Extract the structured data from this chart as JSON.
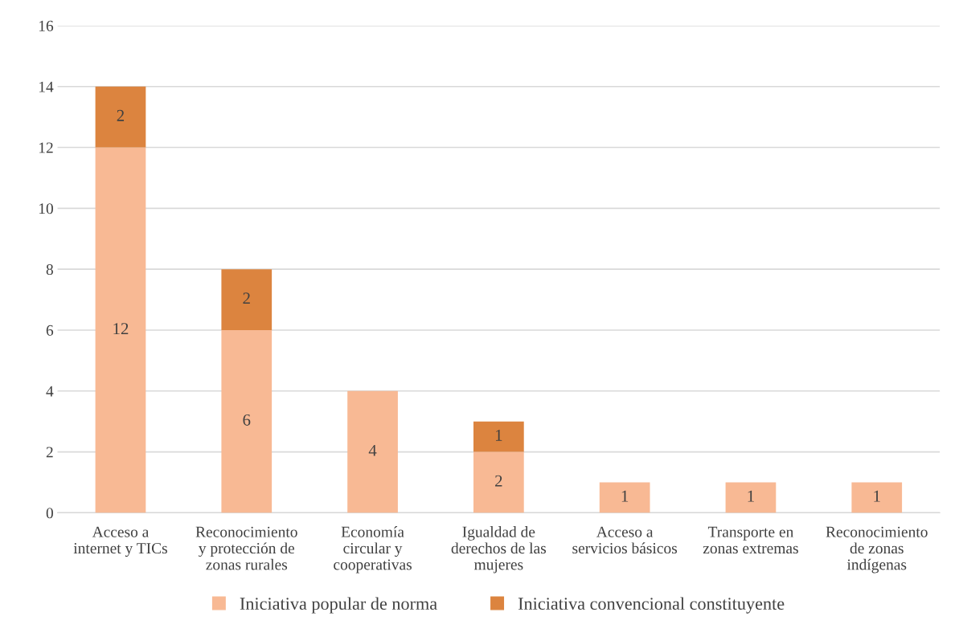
{
  "chart_data": {
    "type": "bar",
    "stacked": true,
    "categories": [
      "Acceso a\ninternet y TICs",
      "Reconocimiento\ny protección de\nzonas rurales",
      "Economía\ncircular y\ncooperativas",
      "Igualdad de\nderechos de las\nmujeres",
      "Acceso a\nservicios básicos",
      "Transporte en\nzonas extremas",
      "Reconocimiento\nde zonas\nindígenas"
    ],
    "series": [
      {
        "name": "Iniciativa popular de norma",
        "color": "#f8b994",
        "values": [
          12,
          6,
          4,
          2,
          1,
          1,
          1
        ]
      },
      {
        "name": "Iniciativa convencional constituyente",
        "color": "#dc843f",
        "values": [
          2,
          2,
          null,
          1,
          null,
          null,
          null
        ]
      }
    ],
    "ylim": [
      0,
      16
    ],
    "yticks": [
      0,
      2,
      4,
      6,
      8,
      10,
      12,
      14,
      16
    ],
    "grid": "y",
    "legend": "bottom",
    "data_labels": true
  }
}
